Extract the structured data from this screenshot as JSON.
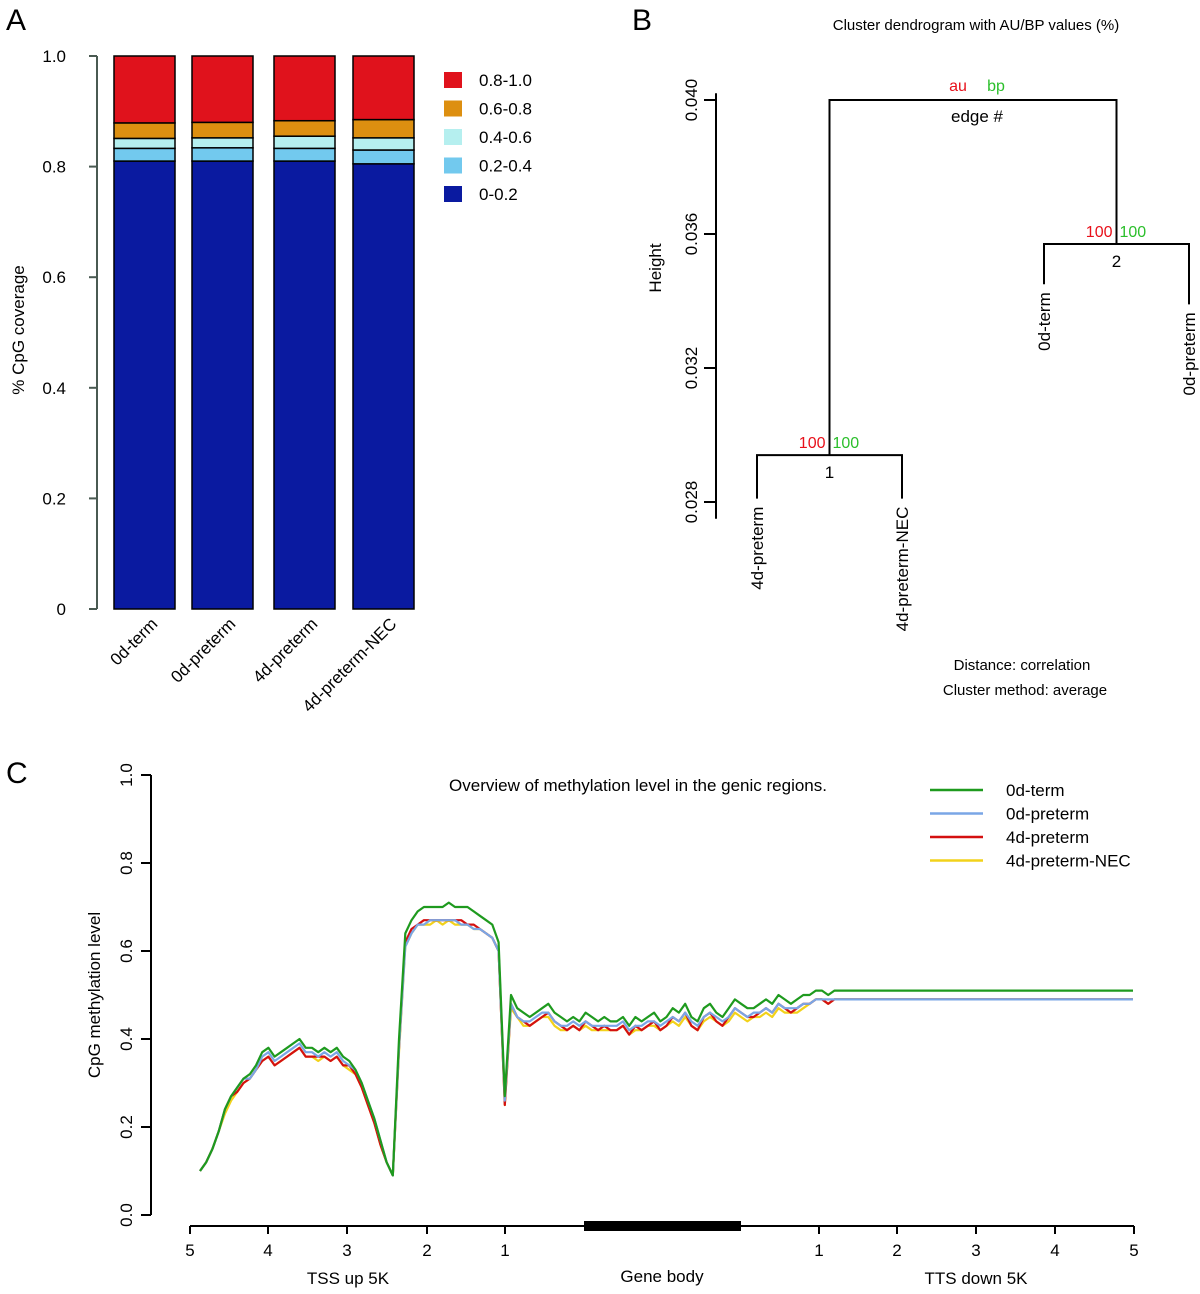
{
  "panels": {
    "a": "A",
    "b": "B",
    "c": "C"
  },
  "chart_data": [
    {
      "panel": "A",
      "type": "bar",
      "stacked": true,
      "ylabel": "% CpG coverage",
      "ylim": [
        0,
        1
      ],
      "yticks": [
        "0",
        "0.2",
        "0.4",
        "0.6",
        "0.8",
        "1.0"
      ],
      "ytick_values": [
        0,
        0.2,
        0.4,
        0.6,
        0.8,
        1.0
      ],
      "categories": [
        "0d-term",
        "0d-preterm",
        "4d-preterm",
        "4d-preterm-NEC"
      ],
      "series": [
        {
          "name": "0-0.2",
          "color": "#0a1aa0",
          "values": [
            0.81,
            0.81,
            0.81,
            0.805
          ]
        },
        {
          "name": "0.2-0.4",
          "color": "#72c9ee",
          "values": [
            0.023,
            0.024,
            0.023,
            0.025
          ]
        },
        {
          "name": "0.4-0.6",
          "color": "#b5efef",
          "values": [
            0.018,
            0.018,
            0.022,
            0.022
          ]
        },
        {
          "name": "0.6-0.8",
          "color": "#dd8f10",
          "values": [
            0.028,
            0.028,
            0.028,
            0.033
          ]
        },
        {
          "name": "0.8-1.0",
          "color": "#e0121c",
          "values": [
            0.121,
            0.12,
            0.117,
            0.115
          ]
        }
      ],
      "legend_order": [
        "0.8-1.0",
        "0.6-0.8",
        "0.4-0.6",
        "0.2-0.4",
        "0-0.2"
      ],
      "legend": "top-right"
    },
    {
      "panel": "B",
      "type": "dendrogram",
      "title": "Cluster dendrogram with AU/BP values (%)",
      "ylabel": "Height",
      "ylim": [
        0.028,
        0.04
      ],
      "yticks": [
        "0.028",
        "0.032",
        "0.036",
        "0.040"
      ],
      "ytick_values": [
        0.028,
        0.032,
        0.036,
        0.04
      ],
      "leaves": [
        "4d-preterm",
        "4d-preterm-NEC",
        "0d-term",
        "0d-preterm"
      ],
      "leaf_heights": [
        0.0281,
        0.0281,
        0.0345,
        0.0339
      ],
      "merges": [
        {
          "edge": "1",
          "left": 0,
          "right": 1,
          "height": 0.0294,
          "au": "100",
          "bp": "100"
        },
        {
          "edge": "2",
          "left": 2,
          "right": 3,
          "height": 0.0357,
          "au": "100",
          "bp": "100"
        }
      ],
      "root": {
        "height": 0.04,
        "label_au": "au",
        "label_bp": "bp",
        "edge_label": "edge #"
      },
      "notes": [
        "Distance:  correlation",
        "Cluster method: average"
      ]
    },
    {
      "panel": "C",
      "type": "line",
      "title": "Overview of methylation level in the genic regions.",
      "ylabel": "CpG methylation level",
      "ylim": [
        0,
        1
      ],
      "yticks": [
        "0.0",
        "0.2",
        "0.4",
        "0.6",
        "0.8",
        "1.0"
      ],
      "ytick_values": [
        0,
        0.2,
        0.4,
        0.6,
        0.8,
        1.0
      ],
      "xticks_left": [
        "5",
        "4",
        "3",
        "2",
        "1"
      ],
      "xticks_right": [
        "1",
        "2",
        "3",
        "4",
        "5"
      ],
      "region_labels": [
        "TSS up 5K",
        "Gene body",
        "TTS down 5K"
      ],
      "legend": "top-right",
      "x": [
        0,
        0.02,
        0.04,
        0.06,
        0.08,
        0.1,
        0.12,
        0.14,
        0.16,
        0.18,
        0.2,
        0.22,
        0.24,
        0.26,
        0.28,
        0.3,
        0.32,
        0.34,
        0.36,
        0.38,
        0.4,
        0.42,
        0.44,
        0.46,
        0.48,
        0.5,
        0.52,
        0.54,
        0.56,
        0.58,
        0.6,
        0.62,
        0.64,
        0.66,
        0.68,
        0.7,
        0.72,
        0.74,
        0.76,
        0.78,
        0.8,
        0.82,
        0.84,
        0.86,
        0.88,
        0.9,
        0.92,
        0.94,
        0.96,
        0.98,
        1.0,
        1.02,
        1.04,
        1.06,
        1.08,
        1.1,
        1.12,
        1.14,
        1.16,
        1.18,
        1.2,
        1.22,
        1.24,
        1.26,
        1.28,
        1.3,
        1.32,
        1.34,
        1.36,
        1.38,
        1.4,
        1.42,
        1.44,
        1.46,
        1.48,
        1.5,
        1.52,
        1.54,
        1.56,
        1.58,
        1.6,
        1.62,
        1.64,
        1.66,
        1.68,
        1.7,
        1.72,
        1.74,
        1.76,
        1.78,
        1.8,
        1.82,
        1.84,
        1.86,
        1.88,
        1.9,
        1.92,
        1.94,
        1.96,
        1.98,
        2.0,
        2.02,
        2.04,
        2.06,
        2.08,
        2.1,
        2.12,
        2.14,
        2.16,
        2.18,
        2.2,
        2.22,
        2.24,
        2.26,
        2.28,
        2.3,
        2.32,
        2.34,
        2.36,
        2.38,
        2.4,
        2.42,
        2.44,
        2.46,
        2.48,
        2.5,
        2.52,
        2.54,
        2.56,
        2.58,
        2.6,
        2.62,
        2.64,
        2.66,
        2.68,
        2.7,
        2.72,
        2.74,
        2.76,
        2.78,
        2.8,
        2.82,
        2.84,
        2.86,
        2.88,
        2.9,
        2.92,
        2.94,
        2.96,
        2.98,
        3.0
      ],
      "series": [
        {
          "name": "0d-term",
          "color": "#1e9a1e",
          "values": [
            0.1,
            0.12,
            0.15,
            0.19,
            0.24,
            0.27,
            0.29,
            0.31,
            0.32,
            0.34,
            0.37,
            0.38,
            0.36,
            0.37,
            0.38,
            0.39,
            0.4,
            0.38,
            0.38,
            0.37,
            0.38,
            0.37,
            0.38,
            0.36,
            0.35,
            0.33,
            0.3,
            0.26,
            0.22,
            0.17,
            0.12,
            0.09,
            0.4,
            0.64,
            0.67,
            0.69,
            0.7,
            0.7,
            0.7,
            0.7,
            0.71,
            0.7,
            0.7,
            0.7,
            0.69,
            0.68,
            0.67,
            0.66,
            0.62,
            0.27,
            0.5,
            0.47,
            0.46,
            0.45,
            0.46,
            0.47,
            0.48,
            0.46,
            0.45,
            0.44,
            0.45,
            0.44,
            0.46,
            0.45,
            0.44,
            0.45,
            0.44,
            0.44,
            0.45,
            0.43,
            0.45,
            0.44,
            0.45,
            0.46,
            0.44,
            0.45,
            0.47,
            0.46,
            0.48,
            0.45,
            0.44,
            0.47,
            0.48,
            0.46,
            0.45,
            0.47,
            0.49,
            0.48,
            0.47,
            0.47,
            0.48,
            0.49,
            0.48,
            0.5,
            0.49,
            0.48,
            0.49,
            0.5,
            0.5,
            0.51,
            0.51,
            0.5,
            0.51,
            0.51,
            0.51,
            0.51,
            0.51,
            0.51,
            0.51,
            0.51,
            0.51,
            0.51,
            0.51,
            0.51,
            0.51,
            0.51,
            0.51,
            0.51,
            0.51,
            0.51,
            0.51,
            0.51,
            0.51,
            0.51,
            0.51,
            0.51,
            0.51,
            0.51,
            0.51,
            0.51,
            0.51,
            0.51,
            0.51,
            0.51,
            0.51,
            0.51,
            0.51,
            0.51,
            0.51,
            0.51,
            0.51,
            0.51,
            0.51,
            0.51,
            0.51,
            0.51,
            0.51,
            0.51,
            0.51,
            0.51,
            0.51
          ]
        },
        {
          "name": "0d-preterm",
          "color": "#7aa6e6",
          "values": [
            0.1,
            0.12,
            0.15,
            0.19,
            0.24,
            0.27,
            0.29,
            0.31,
            0.31,
            0.33,
            0.36,
            0.37,
            0.35,
            0.36,
            0.37,
            0.38,
            0.39,
            0.37,
            0.37,
            0.36,
            0.37,
            0.36,
            0.37,
            0.35,
            0.34,
            0.33,
            0.3,
            0.26,
            0.22,
            0.17,
            0.12,
            0.09,
            0.38,
            0.61,
            0.64,
            0.66,
            0.66,
            0.67,
            0.67,
            0.67,
            0.67,
            0.67,
            0.66,
            0.66,
            0.65,
            0.65,
            0.64,
            0.63,
            0.6,
            0.26,
            0.48,
            0.45,
            0.44,
            0.44,
            0.45,
            0.46,
            0.46,
            0.44,
            0.43,
            0.43,
            0.44,
            0.43,
            0.44,
            0.43,
            0.43,
            0.43,
            0.43,
            0.43,
            0.44,
            0.42,
            0.43,
            0.43,
            0.44,
            0.44,
            0.43,
            0.44,
            0.45,
            0.44,
            0.46,
            0.44,
            0.43,
            0.45,
            0.46,
            0.45,
            0.44,
            0.45,
            0.47,
            0.46,
            0.45,
            0.46,
            0.46,
            0.47,
            0.46,
            0.48,
            0.47,
            0.47,
            0.47,
            0.48,
            0.48,
            0.49,
            0.49,
            0.49,
            0.49,
            0.49,
            0.49,
            0.49,
            0.49,
            0.49,
            0.49,
            0.49,
            0.49,
            0.49,
            0.49,
            0.49,
            0.49,
            0.49,
            0.49,
            0.49,
            0.49,
            0.49,
            0.49,
            0.49,
            0.49,
            0.49,
            0.49,
            0.49,
            0.49,
            0.49,
            0.49,
            0.49,
            0.49,
            0.49,
            0.49,
            0.49,
            0.49,
            0.49,
            0.49,
            0.49,
            0.49,
            0.49,
            0.49,
            0.49,
            0.49,
            0.49,
            0.49,
            0.49,
            0.49,
            0.49,
            0.49,
            0.49,
            0.49
          ]
        },
        {
          "name": "4d-preterm",
          "color": "#d41010",
          "values": [
            0.1,
            0.12,
            0.15,
            0.19,
            0.24,
            0.27,
            0.28,
            0.3,
            0.31,
            0.33,
            0.35,
            0.36,
            0.34,
            0.35,
            0.36,
            0.37,
            0.38,
            0.36,
            0.36,
            0.36,
            0.36,
            0.35,
            0.36,
            0.34,
            0.34,
            0.32,
            0.29,
            0.25,
            0.21,
            0.16,
            0.12,
            0.09,
            0.38,
            0.62,
            0.65,
            0.66,
            0.67,
            0.67,
            0.67,
            0.67,
            0.67,
            0.67,
            0.67,
            0.66,
            0.66,
            0.65,
            0.64,
            0.63,
            0.6,
            0.25,
            0.48,
            0.45,
            0.44,
            0.43,
            0.44,
            0.45,
            0.46,
            0.44,
            0.43,
            0.42,
            0.43,
            0.42,
            0.44,
            0.43,
            0.42,
            0.43,
            0.42,
            0.42,
            0.43,
            0.41,
            0.43,
            0.42,
            0.43,
            0.44,
            0.42,
            0.43,
            0.45,
            0.44,
            0.46,
            0.43,
            0.42,
            0.45,
            0.46,
            0.44,
            0.43,
            0.45,
            0.47,
            0.46,
            0.45,
            0.45,
            0.46,
            0.47,
            0.46,
            0.48,
            0.47,
            0.46,
            0.47,
            0.48,
            0.48,
            0.49,
            0.49,
            0.48,
            0.49,
            0.49,
            0.49,
            0.49,
            0.49,
            0.49,
            0.49,
            0.49,
            0.49,
            0.49,
            0.49,
            0.49,
            0.49,
            0.49,
            0.49,
            0.49,
            0.49,
            0.49,
            0.49,
            0.49,
            0.49,
            0.49,
            0.49,
            0.49,
            0.49,
            0.49,
            0.49,
            0.49,
            0.49,
            0.49,
            0.49,
            0.49,
            0.49,
            0.49,
            0.49,
            0.49,
            0.49,
            0.49,
            0.49,
            0.49,
            0.49,
            0.49,
            0.49,
            0.49,
            0.49,
            0.49,
            0.49,
            0.49,
            0.49
          ]
        },
        {
          "name": "4d-preterm-NEC",
          "color": "#f2d21a",
          "values": [
            0.1,
            0.12,
            0.15,
            0.19,
            0.23,
            0.26,
            0.28,
            0.3,
            0.31,
            0.33,
            0.35,
            0.36,
            0.34,
            0.35,
            0.36,
            0.37,
            0.38,
            0.36,
            0.36,
            0.35,
            0.36,
            0.35,
            0.36,
            0.34,
            0.33,
            0.32,
            0.29,
            0.25,
            0.21,
            0.16,
            0.12,
            0.09,
            0.37,
            0.61,
            0.64,
            0.66,
            0.66,
            0.66,
            0.67,
            0.66,
            0.67,
            0.66,
            0.66,
            0.66,
            0.65,
            0.65,
            0.64,
            0.63,
            0.6,
            0.25,
            0.47,
            0.45,
            0.43,
            0.43,
            0.44,
            0.45,
            0.45,
            0.43,
            0.42,
            0.42,
            0.43,
            0.42,
            0.43,
            0.42,
            0.42,
            0.42,
            0.42,
            0.42,
            0.43,
            0.41,
            0.42,
            0.42,
            0.43,
            0.43,
            0.42,
            0.43,
            0.44,
            0.43,
            0.45,
            0.43,
            0.42,
            0.44,
            0.45,
            0.44,
            0.43,
            0.44,
            0.46,
            0.45,
            0.44,
            0.45,
            0.45,
            0.46,
            0.45,
            0.47,
            0.46,
            0.46,
            0.46,
            0.47,
            0.48,
            0.49,
            0.49,
            0.48,
            0.49,
            0.49,
            0.49,
            0.49,
            0.49,
            0.49,
            0.49,
            0.49,
            0.49,
            0.49,
            0.49,
            0.49,
            0.49,
            0.49,
            0.49,
            0.49,
            0.49,
            0.49,
            0.49,
            0.49,
            0.49,
            0.49,
            0.49,
            0.49,
            0.49,
            0.49,
            0.49,
            0.49,
            0.49,
            0.49,
            0.49,
            0.49,
            0.49,
            0.49,
            0.49,
            0.49,
            0.49,
            0.49,
            0.49,
            0.49,
            0.49,
            0.49,
            0.49,
            0.49,
            0.49,
            0.49,
            0.49,
            0.49,
            0.49
          ]
        }
      ]
    }
  ]
}
